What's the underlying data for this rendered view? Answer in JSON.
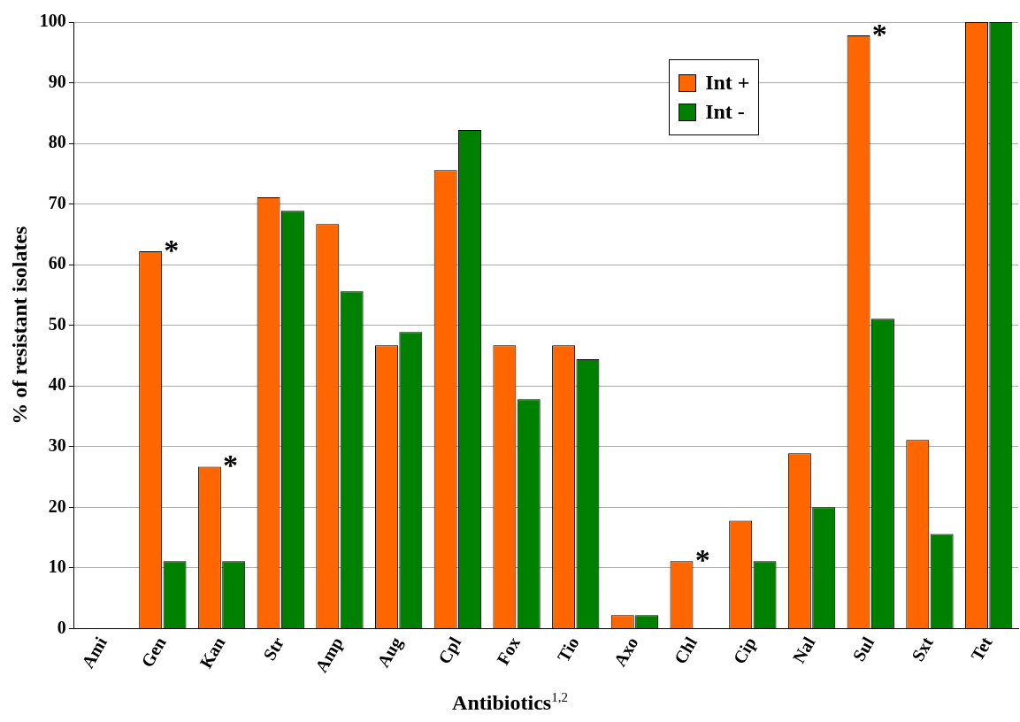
{
  "chart_data": {
    "type": "bar",
    "xlabel": "Antibiotics$^{1,2}$",
    "ylabel": "% of resistant isolates",
    "categories": [
      "Ami",
      "Gen",
      "Kan",
      "Str",
      "Amp",
      "Aug",
      "Cpl",
      "Fox",
      "Tio",
      "Axo",
      "Chl",
      "Cip",
      "Nal",
      "Sul",
      "Sxt",
      "Tet"
    ],
    "series": [
      {
        "name": "Int +",
        "color": "#ff6600",
        "values": [
          0,
          62.2,
          26.7,
          71.1,
          66.7,
          46.7,
          75.6,
          46.7,
          46.7,
          2.2,
          11.1,
          17.8,
          28.9,
          97.8,
          31.1,
          100
        ]
      },
      {
        "name": "Int -",
        "color": "#008000",
        "values": [
          0,
          11.1,
          11.1,
          68.9,
          55.6,
          48.9,
          82.2,
          37.8,
          44.4,
          2.2,
          0,
          11.1,
          20,
          51.1,
          15.6,
          100
        ]
      }
    ],
    "ylim": [
      0,
      100
    ],
    "yticks": [
      0,
      10,
      20,
      30,
      40,
      50,
      60,
      70,
      80,
      90,
      100
    ],
    "grid": "y",
    "legend": "top right",
    "annotations": [
      {
        "text": "*",
        "x": "Gen",
        "y": 62.2
      },
      {
        "text": "*",
        "x": "Kan",
        "y": 26.7
      },
      {
        "text": "*",
        "x": "Chl",
        "y": 11.1
      },
      {
        "text": "*",
        "x": "Sul",
        "y": 97.8
      }
    ]
  }
}
